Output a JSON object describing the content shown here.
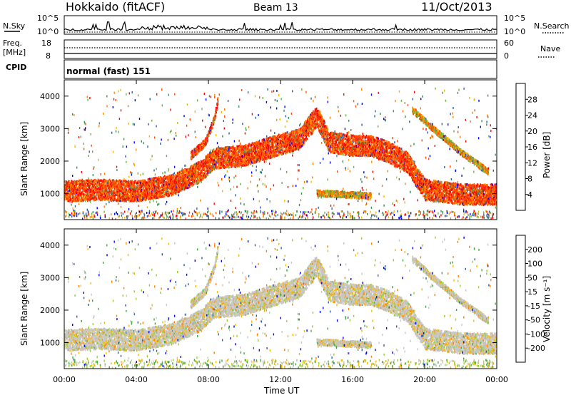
{
  "header": {
    "station": "Hokkaido (fitACF)",
    "beam": "Beam 13",
    "date": "11/Oct/2013"
  },
  "strip_noise": {
    "left_label": "N.Sky",
    "right_label": "N.Search",
    "left_ticks": [
      "10^5",
      "10^0"
    ],
    "right_ticks": [
      "10^5",
      "10^0"
    ]
  },
  "strip_freq": {
    "left_label_1": "Freq.",
    "left_label_2": "[MHz]",
    "right_label": "Nave",
    "left_ticks": [
      "18",
      "8"
    ],
    "right_ticks": [
      "60",
      "0"
    ]
  },
  "strip_cpid": {
    "label": "CPID",
    "text": "normal (fast) 151"
  },
  "colors": {
    "power_scale": [
      "#0000ff",
      "#2e5fa8",
      "#3f8e5a",
      "#6ab04a",
      "#f5b800",
      "#ff8000",
      "#ff4a00",
      "#ff0000"
    ],
    "velocity_scale": [
      "#ff0000",
      "#ff4a00",
      "#ff8000",
      "#f5b800",
      "#c8c8c8",
      "#9acd32",
      "#3fa83f",
      "#2e7d5a",
      "#2e5fa8",
      "#0000ff"
    ]
  },
  "chart_data": [
    {
      "type": "heatmap",
      "panel": "power",
      "ylabel": "Slant Range [km]",
      "ylim": [
        200,
        4500
      ],
      "yticks": [
        "1000",
        "2000",
        "3000",
        "4000"
      ],
      "xticks": [
        "00:00",
        "04:00",
        "08:00",
        "12:00",
        "16:00",
        "20:00",
        "00:00"
      ],
      "colorbar_label": "Power [dB]",
      "colorbar_ticks": [
        "4",
        "8",
        "12",
        "16",
        "20",
        "24",
        "28"
      ],
      "bands": [
        {
          "name": "main",
          "points": [
            [
              0,
              1100
            ],
            [
              2,
              1150
            ],
            [
              4,
              1100
            ],
            [
              6,
              1300
            ],
            [
              7.5,
              1700
            ],
            [
              8.3,
              2100
            ],
            [
              10,
              2200
            ],
            [
              12,
              2550
            ],
            [
              13,
              2700
            ],
            [
              14,
              3400
            ],
            [
              14.7,
              2600
            ],
            [
              16,
              2500
            ],
            [
              17,
              2500
            ],
            [
              18,
              2300
            ],
            [
              19,
              2000
            ],
            [
              20,
              1150
            ],
            [
              22,
              1000
            ],
            [
              24,
              1000
            ]
          ],
          "width": 400,
          "color_level": "strong"
        },
        {
          "name": "upper-branch",
          "points": [
            [
              7,
              2200
            ],
            [
              7.8,
              2600
            ],
            [
              8.3,
              3300
            ],
            [
              8.5,
              3900
            ]
          ],
          "width": 150,
          "color_level": "strong"
        },
        {
          "name": "late-branch",
          "points": [
            [
              19.3,
              3600
            ],
            [
              20.5,
              3000
            ],
            [
              22,
              2300
            ],
            [
              23.5,
              1700
            ]
          ],
          "width": 120,
          "color_level": "medium"
        },
        {
          "name": "low-echoes",
          "points": [
            [
              14,
              1050
            ],
            [
              15.5,
              1000
            ],
            [
              17,
              950
            ]
          ],
          "width": 120,
          "color_level": "medium"
        }
      ]
    },
    {
      "type": "heatmap",
      "panel": "velocity",
      "ylabel": "Slant Range [km]",
      "ylim": [
        200,
        4500
      ],
      "yticks": [
        "1000",
        "2000",
        "3000",
        "4000"
      ],
      "xticks": [
        "00:00",
        "04:00",
        "08:00",
        "12:00",
        "16:00",
        "20:00",
        "00:00"
      ],
      "xlabel": "Time UT",
      "colorbar_label": "Velocity [m s⁻¹]",
      "colorbar_ticks": [
        "200",
        "100",
        "50",
        "15",
        "-15",
        "-50",
        "-100",
        "-200"
      ]
    }
  ]
}
